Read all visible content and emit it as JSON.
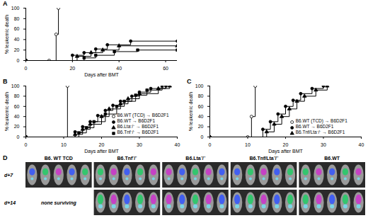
{
  "chart_data": [
    {
      "type": "line",
      "panel": "A",
      "xlabel": "Days after BMT",
      "ylabel": "% leukemic death",
      "xlim": [
        0,
        65
      ],
      "xticks": [
        0,
        20,
        40,
        60
      ],
      "ylim": [
        0,
        100
      ],
      "yticks": [
        0,
        20,
        40,
        60,
        80,
        100
      ],
      "series": [
        {
          "color": "#000000",
          "marker": "open_circle",
          "x": [
            0,
            10,
            13,
            14
          ],
          "values": [
            0,
            0,
            50,
            100
          ]
        },
        {
          "color": "#000000",
          "marker": "circle",
          "x": [
            0,
            20,
            25,
            30,
            35,
            45,
            65
          ],
          "values": [
            0,
            10,
            15,
            22,
            30,
            37,
            37
          ]
        },
        {
          "color": "#000000",
          "marker": "triangle",
          "x": [
            0,
            22,
            28,
            33,
            40,
            65
          ],
          "values": [
            0,
            8,
            15,
            20,
            28,
            28
          ]
        },
        {
          "color": "#000000",
          "marker": "square",
          "x": [
            0,
            25,
            30,
            38,
            48,
            65
          ],
          "values": [
            0,
            5,
            10,
            17,
            20,
            20
          ]
        }
      ]
    },
    {
      "type": "line",
      "panel": "B",
      "xlabel": "Days after BMT",
      "ylabel": "% leukemic death",
      "xlim": [
        0,
        40
      ],
      "xticks": [
        0,
        10,
        20,
        30,
        40
      ],
      "ylim": [
        0,
        100
      ],
      "yticks": [
        0,
        20,
        40,
        60,
        80,
        100
      ],
      "legend": "bottom-right",
      "series": [
        {
          "name": "B6.WT (TCD) → B6D2F1",
          "color": "#000000",
          "marker": "open_circle",
          "x": [
            0,
            11
          ],
          "values": [
            0,
            100
          ]
        },
        {
          "name": "B6.WT → B6D2F1",
          "color": "#000000",
          "marker": "circle",
          "x": [
            0,
            13,
            15,
            17,
            19,
            21,
            23,
            25,
            28,
            30,
            33,
            37
          ],
          "values": [
            0,
            10,
            20,
            30,
            42,
            52,
            62,
            70,
            80,
            88,
            95,
            100
          ]
        },
        {
          "name": "B6.Lta⁻/⁻ → B6D2F1",
          "color": "#000000",
          "marker": "triangle",
          "x": [
            0,
            13,
            15,
            17,
            20,
            22,
            25,
            27,
            30,
            35,
            38
          ],
          "values": [
            0,
            5,
            15,
            25,
            40,
            55,
            65,
            75,
            85,
            95,
            100
          ]
        },
        {
          "name": "B6.Tnf⁻/⁻ → B6D2F1",
          "color": "#000000",
          "marker": "square",
          "x": [
            0,
            14,
            16,
            18,
            21,
            24,
            26,
            29,
            32,
            36
          ],
          "values": [
            0,
            8,
            18,
            30,
            45,
            60,
            70,
            82,
            92,
            100
          ]
        }
      ]
    },
    {
      "type": "line",
      "panel": "C",
      "xlabel": "Days after BMT",
      "ylabel": "% leukemic death",
      "xlim": [
        0,
        40
      ],
      "xticks": [
        0,
        10,
        20,
        30,
        40
      ],
      "ylim": [
        0,
        100
      ],
      "yticks": [
        0,
        20,
        40,
        60,
        80,
        100
      ],
      "legend": "bottom-right",
      "series": [
        {
          "name": "B6.WT (TCD) → B6D2F1",
          "color": "#000000",
          "marker": "open_circle",
          "x": [
            0,
            10,
            11,
            12
          ],
          "values": [
            0,
            0,
            40,
            100
          ]
        },
        {
          "name": "B6.WT → B6D2F1",
          "color": "#000000",
          "marker": "circle",
          "x": [
            0,
            14,
            16,
            18,
            20,
            22,
            24,
            27,
            30
          ],
          "values": [
            0,
            15,
            30,
            45,
            60,
            72,
            85,
            95,
            100
          ]
        },
        {
          "name": "B6.Tnf/Lta⁻/⁻ → B6D2F1",
          "color": "#000000",
          "marker": "triangle",
          "x": [
            0,
            15,
            17,
            19,
            21,
            23,
            25,
            28,
            31
          ],
          "values": [
            0,
            10,
            25,
            40,
            55,
            70,
            80,
            92,
            100
          ]
        }
      ]
    }
  ],
  "panel_d": {
    "letter": "D",
    "groups": [
      "B6. WT TCD",
      "B6.Tnf⁻/⁻",
      "B6.Lta⁻/⁻",
      "B6.Tnf/Lta⁻/⁻",
      "B6.WT"
    ],
    "rows": [
      {
        "label": "d+7",
        "notes": [
          null,
          null,
          null,
          null,
          null
        ]
      },
      {
        "label": "d+14",
        "notes": [
          "none surviving",
          null,
          null,
          null,
          null
        ]
      }
    ]
  }
}
